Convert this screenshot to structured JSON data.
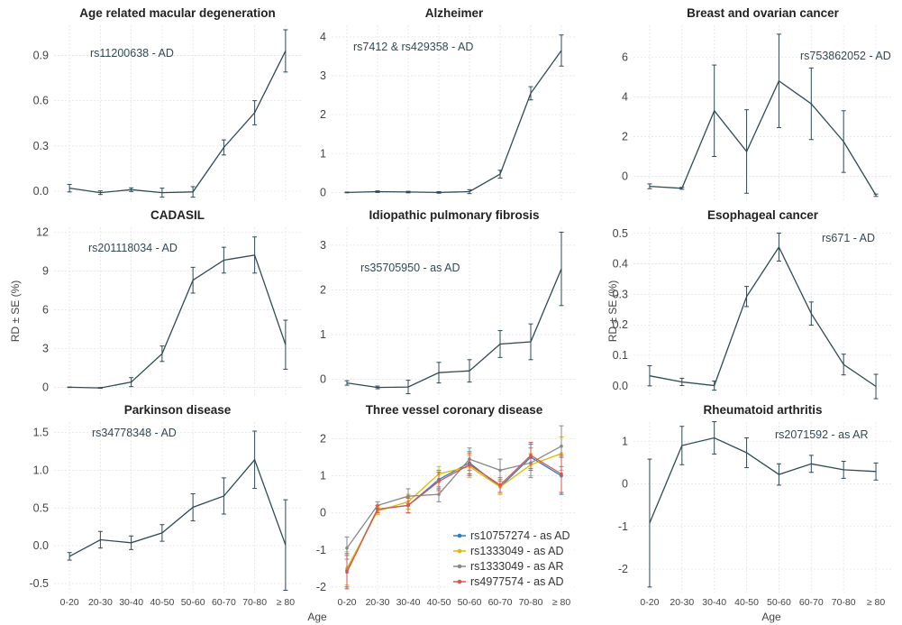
{
  "figure": {
    "ylabel": "RD ± SE (%)",
    "xlabel": "Age",
    "age_groups": [
      "0-20",
      "20-30",
      "30-40",
      "40-50",
      "50-60",
      "60-70",
      "70-80",
      "≥ 80"
    ]
  },
  "colors": {
    "line": "#2f4a55",
    "grid": "#e4e4e4",
    "title": "#222222",
    "annotation": "#2f4a55",
    "axis_text": "#444444"
  },
  "chart_data": [
    {
      "type": "line",
      "title": "Age related macular degeneration",
      "annotation": "rs11200638 - AD",
      "yticks": [
        "0.0",
        "0.3",
        "0.6",
        "0.9"
      ],
      "ylim": [
        -0.06,
        1.1
      ],
      "series": [
        {
          "values": [
            0.02,
            -0.01,
            0.01,
            -0.01,
            -0.005,
            0.29,
            0.52,
            0.93
          ],
          "errors": [
            0.025,
            0.012,
            0.012,
            0.03,
            0.035,
            0.05,
            0.08,
            0.14
          ]
        }
      ]
    },
    {
      "type": "line",
      "title": "Alzheimer",
      "annotation": "rs7412 & rs429358 - AD",
      "yticks": [
        "0",
        "1",
        "2",
        "3",
        "4"
      ],
      "ylim": [
        -0.2,
        4.3
      ],
      "series": [
        {
          "values": [
            0.0,
            0.02,
            0.01,
            0.0,
            0.02,
            0.47,
            2.55,
            3.65
          ],
          "errors": [
            0.01,
            0.02,
            0.02,
            0.02,
            0.05,
            0.1,
            0.17,
            0.4
          ]
        }
      ]
    },
    {
      "type": "line",
      "title": "Breast and ovarian cancer",
      "annotation": "rs753862052 - AD",
      "yticks": [
        "0",
        "2",
        "4",
        "6"
      ],
      "ylim": [
        -1.2,
        7.6
      ],
      "series": [
        {
          "values": [
            -0.5,
            -0.6,
            3.3,
            1.25,
            4.8,
            3.65,
            1.75,
            -0.95
          ],
          "errors": [
            0.12,
            0.05,
            2.3,
            2.1,
            2.35,
            1.8,
            1.55,
            0.06
          ]
        }
      ]
    },
    {
      "type": "line",
      "title": "CADASIL",
      "annotation": "rs201118034 - AD",
      "yticks": [
        "0",
        "3",
        "6",
        "9",
        "12"
      ],
      "ylim": [
        -0.6,
        12.4
      ],
      "series": [
        {
          "values": [
            0.0,
            -0.05,
            0.4,
            2.6,
            8.3,
            9.85,
            10.25,
            3.3
          ],
          "errors": [
            0.02,
            0.03,
            0.35,
            0.6,
            1.0,
            1.0,
            1.4,
            1.9
          ]
        }
      ]
    },
    {
      "type": "line",
      "title": "Idiopathic pulmonary fibrosis",
      "annotation": "rs35705950 - as AD",
      "yticks": [
        "0",
        "1",
        "2",
        "3"
      ],
      "ylim": [
        -0.35,
        3.4
      ],
      "series": [
        {
          "values": [
            -0.08,
            -0.18,
            -0.17,
            0.15,
            0.19,
            0.79,
            0.84,
            2.47
          ],
          "errors": [
            0.05,
            0.03,
            0.15,
            0.23,
            0.25,
            0.3,
            0.4,
            0.82
          ]
        }
      ]
    },
    {
      "type": "line",
      "title": "Esophageal cancer",
      "annotation": "rs671 - AD",
      "yticks": [
        "0.0",
        "0.1",
        "0.2",
        "0.3",
        "0.4",
        "0.5"
      ],
      "ylim": [
        -0.03,
        0.52
      ],
      "series": [
        {
          "values": [
            0.033,
            0.013,
            0.001,
            0.293,
            0.455,
            0.237,
            0.07,
            -0.002
          ],
          "errors": [
            0.033,
            0.012,
            0.015,
            0.033,
            0.046,
            0.038,
            0.034,
            0.04
          ]
        }
      ]
    },
    {
      "type": "line",
      "title": "Parkinson disease",
      "annotation": "rs34778348 - AD",
      "yticks": [
        "-0.5",
        "0.0",
        "0.5",
        "1.0",
        "1.5"
      ],
      "ylim": [
        -0.62,
        1.64
      ],
      "series": [
        {
          "values": [
            -0.14,
            0.08,
            0.04,
            0.17,
            0.51,
            0.66,
            1.14,
            0.01
          ],
          "errors": [
            0.05,
            0.11,
            0.09,
            0.11,
            0.18,
            0.24,
            0.38,
            0.6
          ]
        }
      ]
    },
    {
      "type": "line",
      "title": "Three vessel coronary disease",
      "yticks": [
        "-2",
        "-1",
        "0",
        "1",
        "2"
      ],
      "ylim": [
        -2.15,
        2.45
      ],
      "legend_position": "bottom-right",
      "series": [
        {
          "name": "rs10757274 - as AD",
          "color": "#2b7fc4",
          "values": [
            -1.55,
            0.1,
            0.2,
            0.9,
            1.35,
            0.7,
            1.5,
            1.0
          ],
          "errors": [
            0.45,
            0.1,
            0.2,
            0.25,
            0.3,
            0.2,
            0.35,
            0.5
          ]
        },
        {
          "name": "rs1333049 - as AD",
          "color": "#e3b800",
          "values": [
            -1.5,
            0.05,
            0.3,
            1.05,
            1.25,
            0.7,
            1.3,
            1.6
          ],
          "errors": [
            0.45,
            0.1,
            0.2,
            0.2,
            0.3,
            0.2,
            0.3,
            0.45
          ]
        },
        {
          "name": "rs1333049 - as AR",
          "color": "#888888",
          "values": [
            -0.95,
            0.2,
            0.45,
            0.5,
            1.45,
            1.15,
            1.35,
            1.8
          ],
          "errors": [
            0.3,
            0.1,
            0.2,
            0.2,
            0.3,
            0.3,
            0.4,
            0.55
          ]
        },
        {
          "name": "rs4977574 - as AD",
          "color": "#d9534f",
          "values": [
            -1.6,
            0.1,
            0.2,
            0.85,
            1.3,
            0.75,
            1.55,
            1.05
          ],
          "errors": [
            0.45,
            0.1,
            0.2,
            0.25,
            0.3,
            0.2,
            0.35,
            0.5
          ]
        }
      ]
    },
    {
      "type": "line",
      "title": "Rheumatoid arthritis",
      "annotation": "rs2071592 - as AR",
      "yticks": [
        "-2",
        "-1",
        "0",
        "1"
      ],
      "ylim": [
        -2.55,
        1.45
      ],
      "series": [
        {
          "values": [
            -0.92,
            0.9,
            1.08,
            0.73,
            0.22,
            0.47,
            0.33,
            0.29
          ],
          "errors": [
            1.5,
            0.45,
            0.38,
            0.35,
            0.25,
            0.2,
            0.2,
            0.2
          ]
        }
      ]
    }
  ]
}
